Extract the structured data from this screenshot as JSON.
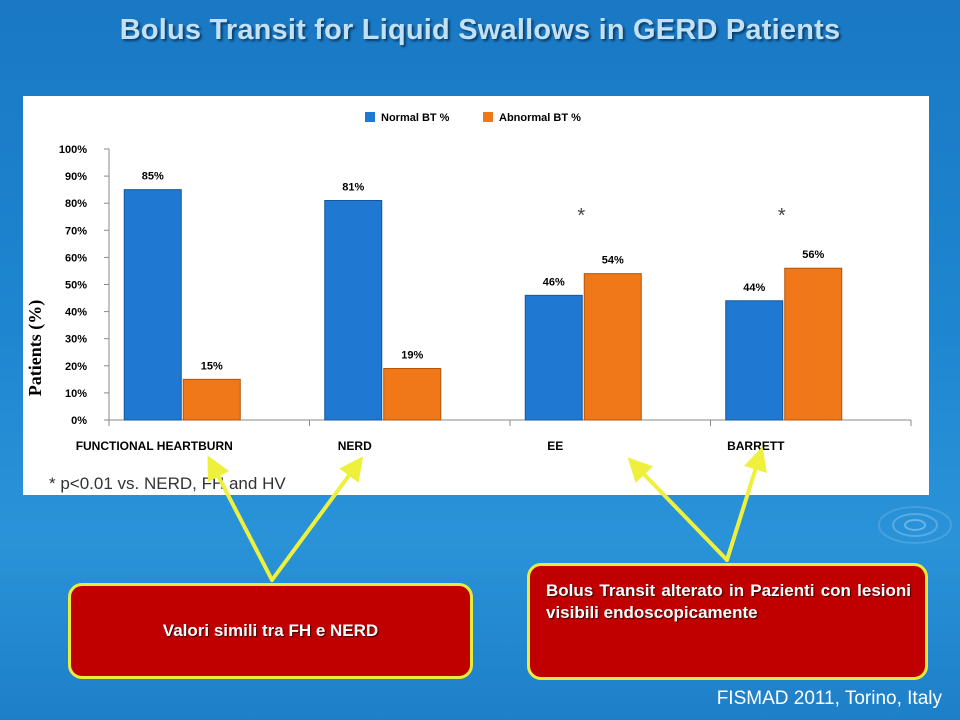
{
  "slide": {
    "title": "Bolus Transit for Liquid Swallows in GERD Patients",
    "citation": "FISMAD 2011, Torino, Italy"
  },
  "chart_data": {
    "type": "bar",
    "title": "",
    "xlabel": "",
    "ylabel": "Patients (%)",
    "categories": [
      "FUNCTIONAL HEARTBURN",
      "NERD",
      "EE",
      "BARRETT"
    ],
    "series": [
      {
        "name": "Normal BT %",
        "values": [
          85,
          81,
          46,
          44
        ],
        "color": "#1f78d1"
      },
      {
        "name": "Abnormal BT %",
        "values": [
          15,
          19,
          54,
          56
        ],
        "color": "#f07818"
      }
    ],
    "data_labels": [
      [
        "85%",
        "81%",
        "46%",
        "44%"
      ],
      [
        "15%",
        "19%",
        "54%",
        "56%"
      ]
    ],
    "ylim": [
      0,
      100
    ],
    "yticks": [
      "0%",
      "10%",
      "20%",
      "30%",
      "40%",
      "50%",
      "60%",
      "70%",
      "80%",
      "90%",
      "100%"
    ],
    "significance_markers": [
      {
        "category": "EE",
        "symbol": "*"
      },
      {
        "category": "BARRETT",
        "symbol": "*"
      }
    ],
    "footnote": "*   p<0.01 vs. NERD, FH and HV",
    "legend_position": "top",
    "grid": false
  },
  "callouts": {
    "left": "Valori simili tra FH e NERD",
    "right": "Bolus Transit alterato in Pazienti con lesioni visibili endoscopicamente"
  },
  "colors": {
    "background": "#1e86d0",
    "title_text": "#c3e1f6",
    "callout_fill": "#c00000",
    "callout_border": "#e8ec3a",
    "arrow": "#eef03c"
  },
  "icons": [
    "ripple-decoration-icon"
  ]
}
